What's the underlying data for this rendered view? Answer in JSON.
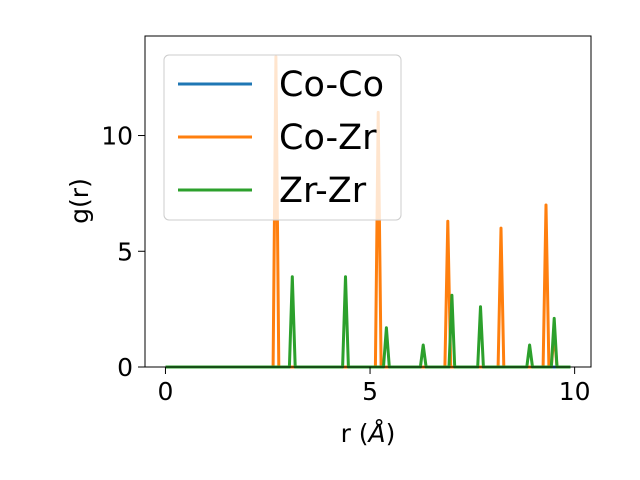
{
  "chart_data": {
    "type": "line",
    "xlabel": "r (",
    "xlabel_unit": "Å",
    "xlabel_close": ")",
    "ylabel": "g(r)",
    "xlim": [
      -0.5,
      10.4
    ],
    "ylim": [
      0,
      14.3
    ],
    "xticks": [
      0,
      5,
      10
    ],
    "xtick_labels": [
      "0",
      "5",
      "10"
    ],
    "yticks": [
      0,
      5,
      10
    ],
    "ytick_labels": [
      "0",
      "5",
      "10"
    ],
    "grid": false,
    "legend_position": "upper-left",
    "series": [
      {
        "name": "Co-Co",
        "color": "#1f77b4",
        "peaks": []
      },
      {
        "name": "Co-Zr",
        "color": "#ff7f0e",
        "peaks": [
          {
            "r": 2.7,
            "g": 13.4
          },
          {
            "r": 5.2,
            "g": 11.0
          },
          {
            "r": 6.9,
            "g": 6.3
          },
          {
            "r": 8.2,
            "g": 6.0
          },
          {
            "r": 9.3,
            "g": 7.0
          },
          {
            "r": 9.5,
            "g": 1.5
          }
        ]
      },
      {
        "name": "Zr-Zr",
        "color": "#2ca02c",
        "peaks": [
          {
            "r": 3.1,
            "g": 3.9
          },
          {
            "r": 4.4,
            "g": 3.9
          },
          {
            "r": 5.4,
            "g": 1.7
          },
          {
            "r": 6.3,
            "g": 0.95
          },
          {
            "r": 7.0,
            "g": 3.1
          },
          {
            "r": 7.7,
            "g": 2.6
          },
          {
            "r": 8.9,
            "g": 0.95
          },
          {
            "r": 9.5,
            "g": 2.1
          }
        ]
      }
    ],
    "x_range_data": [
      0,
      9.9
    ]
  }
}
